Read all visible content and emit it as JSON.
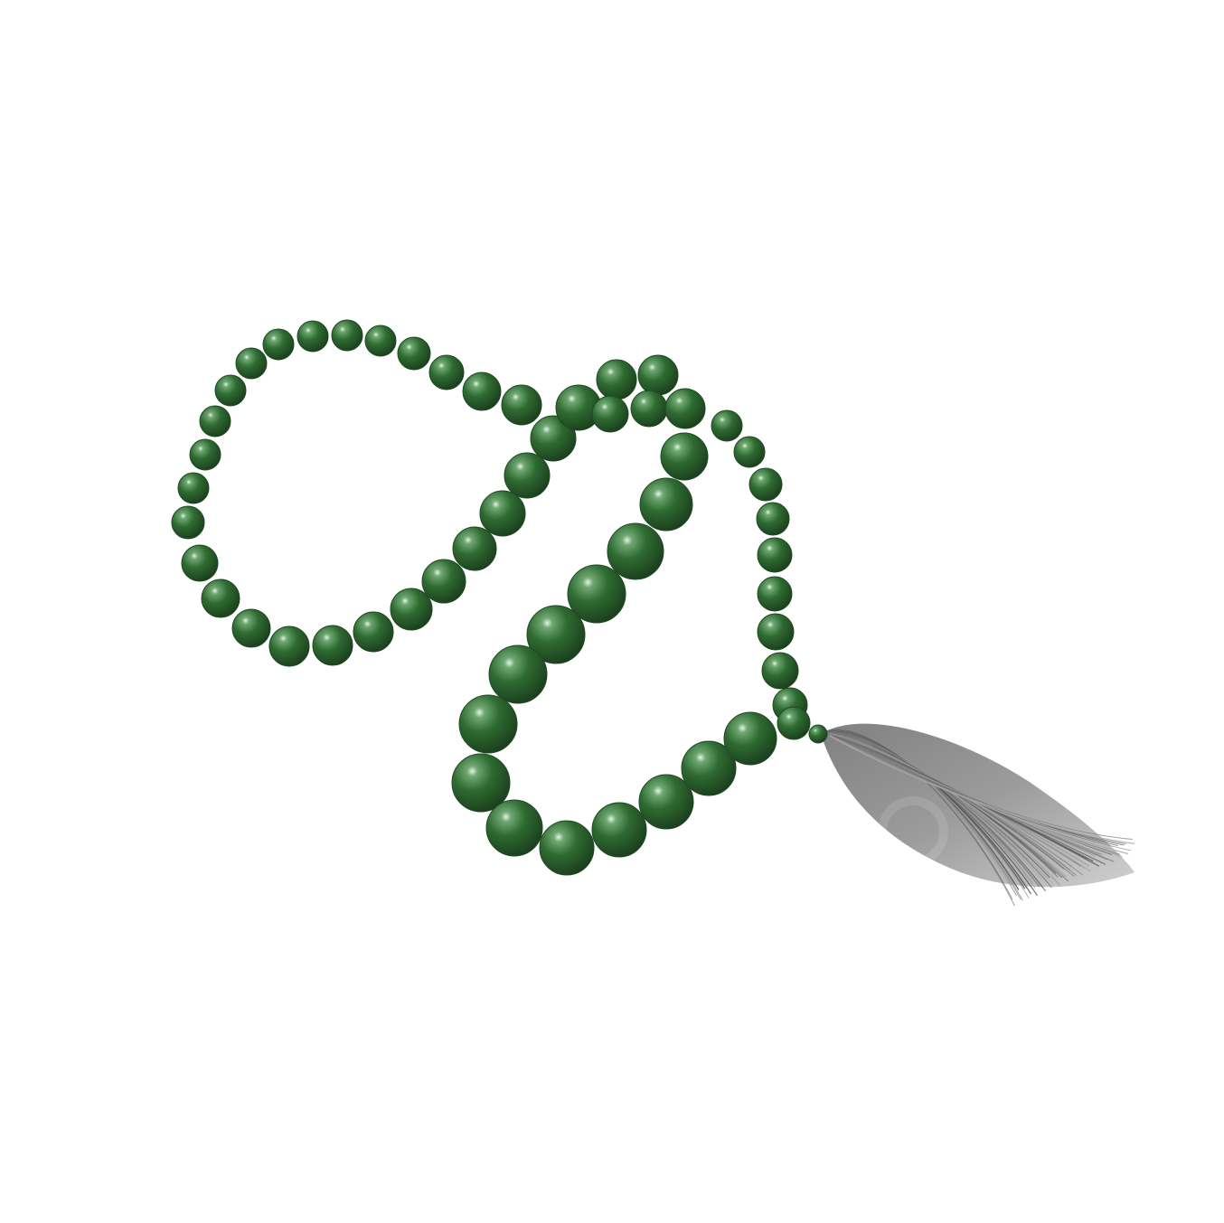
{
  "image": {
    "subject": "prayer-beads",
    "background_color": "#ffffff"
  },
  "colors": {
    "bead_dark": "#1f4a22",
    "bead_mid": "#2f6b32",
    "bead_light": "#6fa872",
    "bead_highlight": "#e6f2e6",
    "tassel_dark": "#5a5a5a",
    "tassel_light": "#b8b8b8"
  },
  "icons": {
    "beads": "bead-icon",
    "tassel": "tassel-icon",
    "watermark": "watermark-logo"
  }
}
